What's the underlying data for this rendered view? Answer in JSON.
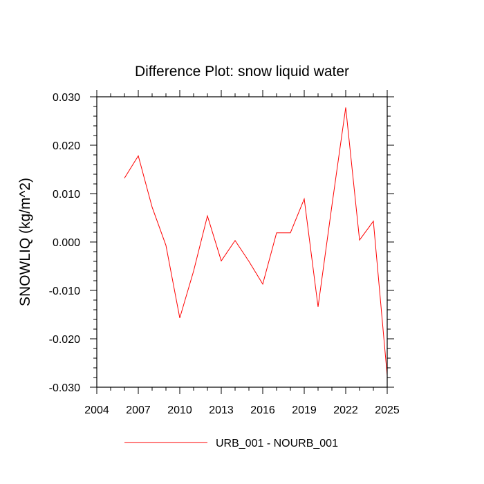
{
  "chart_data": {
    "type": "line",
    "title": "Difference Plot: snow liquid water",
    "xlabel": "",
    "ylabel": "SNOWLIQ  (kg/m^2)",
    "xlim": [
      2004,
      2025
    ],
    "ylim": [
      -0.03,
      0.03
    ],
    "x_ticks": [
      2004,
      2007,
      2010,
      2013,
      2016,
      2019,
      2022,
      2025
    ],
    "x_tick_labels": [
      "2004",
      "2007",
      "2010",
      "2013",
      "2016",
      "2019",
      "2022",
      "2025"
    ],
    "y_ticks": [
      -0.03,
      -0.02,
      -0.01,
      0.0,
      0.01,
      0.02,
      0.03
    ],
    "y_tick_labels": [
      "-0.030",
      "-0.020",
      "-0.010",
      "0.000",
      "0.010",
      "0.020",
      "0.030"
    ],
    "grid": false,
    "legend_position": "bottom-center",
    "series": [
      {
        "name": "URB_001 - NOURB_001",
        "color": "#ff0000",
        "x": [
          2006,
          2007,
          2008,
          2009,
          2010,
          2011,
          2012,
          2013,
          2014,
          2015,
          2016,
          2017,
          2018,
          2019,
          2020,
          2021,
          2022,
          2023,
          2024,
          2025
        ],
        "y": [
          0.0132,
          0.0178,
          0.0072,
          -0.0007,
          -0.0157,
          -0.006,
          0.0054,
          -0.0039,
          0.0003,
          -0.004,
          -0.0087,
          0.0019,
          0.0019,
          0.0089,
          -0.0134,
          0.0075,
          0.0278,
          0.0004,
          0.0043,
          -0.0276
        ]
      }
    ]
  }
}
